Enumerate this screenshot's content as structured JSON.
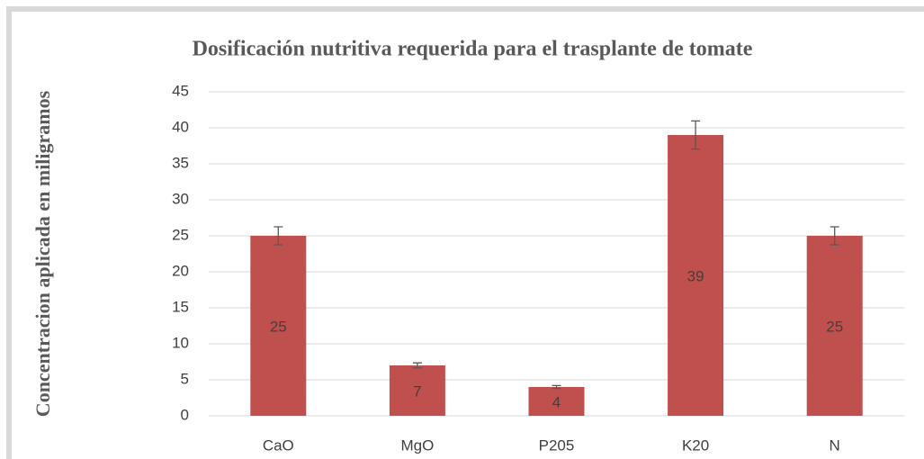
{
  "chart_data": {
    "type": "bar",
    "title": "Dosificación nutritiva requerida para el trasplante de tomate",
    "ylabel": "Concentracion aplicada  en miligramos",
    "categories": [
      "CaO",
      "MgO",
      "P205",
      "K20",
      "N"
    ],
    "values": [
      25,
      7,
      4,
      39,
      25
    ],
    "errors": [
      1.25,
      0.35,
      0.2,
      1.95,
      1.25
    ],
    "color": "#c0504d",
    "ylim": [
      0,
      45
    ],
    "yticks": [
      0,
      5,
      10,
      15,
      20,
      25,
      30,
      35,
      40,
      45
    ],
    "grid": true,
    "data_labels": true
  }
}
